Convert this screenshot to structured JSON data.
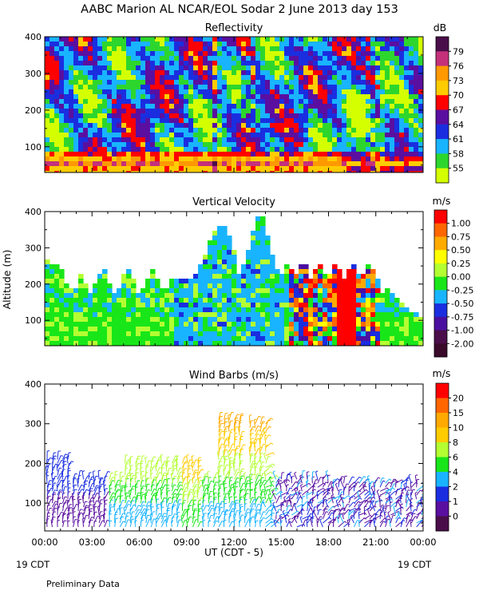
{
  "title": "AABC Marion AL NCAR/EOL Sodar    2 June 2013 day 153",
  "footer": "Preliminary Data",
  "bottom": {
    "xlabel": "UT  (CDT - 5)",
    "date_left": "19 CDT",
    "date_right": "19 CDT",
    "time_ticks": [
      "00:00",
      "03:00",
      "06:00",
      "09:00",
      "12:00",
      "15:00",
      "18:00",
      "21:00",
      "00:00"
    ]
  },
  "chart_data": [
    {
      "type": "heatmap",
      "title": "Reflectivity",
      "units": "dB",
      "xlabel": "",
      "ylabel": "",
      "x_range_hours": [
        0,
        24
      ],
      "ylim": [
        30,
        400
      ],
      "ytick_labels": [
        "100",
        "200",
        "300",
        "400"
      ],
      "ytick_values": [
        100,
        200,
        300,
        400
      ],
      "colorbar_labels": [
        "79",
        "76",
        "73",
        "70",
        "67",
        "64",
        "61",
        "58",
        "55"
      ],
      "colorbar_colors": [
        "#4a0e4a",
        "#c4317a",
        "#ff9900",
        "#ffcc00",
        "#ff0000",
        "#5a0fa0",
        "#1a2ee0",
        "#19b4ff",
        "#2dd62d",
        "#d4ff00"
      ]
    },
    {
      "type": "heatmap",
      "title": "Vertical Velocity",
      "units": "m/s",
      "xlabel": "",
      "ylabel": "Altitude (m)",
      "x_range_hours": [
        0,
        24
      ],
      "ylim": [
        30,
        400
      ],
      "ytick_labels": [
        "100",
        "200",
        "300",
        "400"
      ],
      "ytick_values": [
        100,
        200,
        300,
        400
      ],
      "colorbar_labels": [
        "1.00",
        "0.75",
        "0.50",
        "0.25",
        "0.00",
        "-0.25",
        "-0.50",
        "-0.75",
        "-1.00",
        "-2.00"
      ],
      "colorbar_colors": [
        "#ff0000",
        "#ff6600",
        "#ffaa00",
        "#ffff00",
        "#b4ff32",
        "#19e619",
        "#19b4ff",
        "#1a2ee0",
        "#4b0fa0",
        "#4a0e4a",
        "#3a0a2a"
      ]
    },
    {
      "type": "scatter",
      "title": "Wind Barbs (m/s)",
      "units": "m/s",
      "xlabel": "UT  (CDT - 5)",
      "ylabel": "",
      "x_range_hours": [
        0,
        24
      ],
      "ylim": [
        30,
        400
      ],
      "ytick_labels": [
        "100",
        "200",
        "300",
        "400"
      ],
      "ytick_values": [
        100,
        200,
        300,
        400
      ],
      "colorbar_labels": [
        "20",
        "15",
        "10",
        "8",
        "6",
        "4",
        "2",
        "1",
        "0"
      ],
      "colorbar_colors": [
        "#ff0000",
        "#ff6600",
        "#ffaa00",
        "#ffcc00",
        "#b4ff32",
        "#19e619",
        "#19b4ff",
        "#1a2ee0",
        "#5a0fa0",
        "#4a0e4a"
      ]
    }
  ]
}
